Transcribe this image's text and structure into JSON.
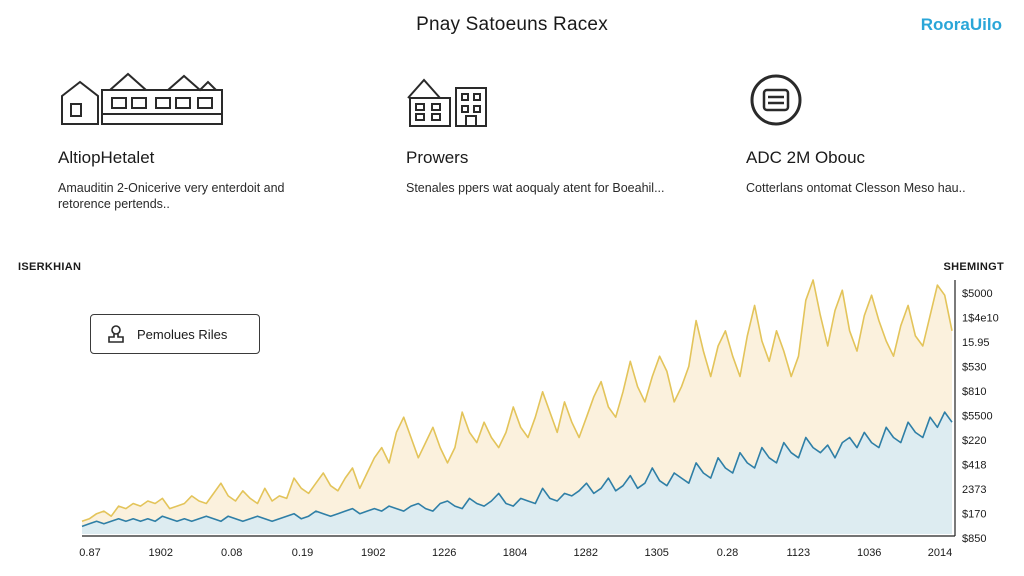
{
  "header": {
    "title": "Pnay Satoeuns Racex",
    "brand": "RooraUilo"
  },
  "features": [
    {
      "title": "AltiopHetalet",
      "text": "Amauditin 2-Onicerive very enterdoit and retorence pertends..",
      "icon": "house-row-icon"
    },
    {
      "title": "Prowers",
      "text": "Stenales ppers wat aoqualy atent for Boeahil...",
      "icon": "buildings-icon"
    },
    {
      "title": "ADC 2M Obouc",
      "text": "Cotterlans ontomat Clesson Meso hau..",
      "icon": "circle-badge-icon"
    }
  ],
  "filter_button": {
    "label": "Pemolues Riles",
    "icon": "stamp-icon"
  },
  "chart_data": {
    "type": "area",
    "xlabel": "ISERKHIAN",
    "ylabel": "SHEMINGT",
    "x_tick_labels": [
      "0.87",
      "1902",
      "0.08",
      "0.19",
      "1902",
      "1226",
      "1804",
      "1282",
      "1305",
      "0.28",
      "1123",
      "1036",
      "2014"
    ],
    "y_tick_labels": [
      "$5000",
      "1$4e10",
      "15.95",
      "$530",
      "$810",
      "$5500",
      "$220",
      "$418",
      "2373",
      "$170",
      "$850"
    ],
    "ylim": [
      0,
      100
    ],
    "grid": false,
    "colors": {
      "series_a_line": "#e3c45a",
      "series_a_fill": "#fbf0d9",
      "series_b_line": "#2f7fa6",
      "series_b_fill": "#d7ebf5"
    },
    "x": [
      0,
      1,
      2,
      3,
      4,
      5,
      6,
      7,
      8,
      9,
      10,
      11,
      12,
      13,
      14,
      15,
      16,
      17,
      18,
      19,
      20,
      21,
      22,
      23,
      24,
      25,
      26,
      27,
      28,
      29,
      30,
      31,
      32,
      33,
      34,
      35,
      36,
      37,
      38,
      39,
      40,
      41,
      42,
      43,
      44,
      45,
      46,
      47,
      48,
      49,
      50,
      51,
      52,
      53,
      54,
      55,
      56,
      57,
      58,
      59,
      60,
      61,
      62,
      63,
      64,
      65,
      66,
      67,
      68,
      69,
      70,
      71,
      72,
      73,
      74,
      75,
      76,
      77,
      78,
      79,
      80,
      81,
      82,
      83,
      84,
      85,
      86,
      87,
      88,
      89,
      90,
      91,
      92,
      93,
      94,
      95,
      96,
      97,
      98,
      99,
      100,
      101,
      102,
      103,
      104,
      105,
      106,
      107,
      108,
      109,
      110,
      111,
      112,
      113,
      114,
      115,
      116,
      117,
      118,
      119
    ],
    "series": [
      {
        "values": [
          5,
          6,
          8,
          9,
          7,
          11,
          10,
          12,
          11,
          13,
          12,
          14,
          10,
          11,
          12,
          15,
          13,
          12,
          16,
          20,
          15,
          13,
          17,
          14,
          12,
          18,
          13,
          15,
          14,
          22,
          18,
          16,
          20,
          24,
          19,
          17,
          22,
          26,
          18,
          24,
          30,
          34,
          28,
          40,
          46,
          38,
          30,
          36,
          42,
          34,
          28,
          34,
          48,
          40,
          36,
          44,
          38,
          34,
          40,
          50,
          42,
          38,
          46,
          56,
          48,
          40,
          52,
          44,
          38,
          46,
          54,
          60,
          50,
          46,
          56,
          68,
          58,
          52,
          62,
          70,
          64,
          52,
          58,
          66,
          84,
          72,
          62,
          74,
          80,
          70,
          62,
          78,
          90,
          76,
          68,
          80,
          72,
          62,
          70,
          92,
          100,
          86,
          74,
          88,
          96,
          80,
          72,
          86,
          94,
          84,
          76,
          70,
          82,
          90,
          78,
          74,
          86,
          98,
          94,
          80
        ]
      },
      {
        "values": [
          3,
          4,
          5,
          4,
          5,
          6,
          5,
          6,
          5,
          6,
          5,
          7,
          6,
          5,
          6,
          5,
          6,
          7,
          6,
          5,
          7,
          6,
          5,
          6,
          7,
          6,
          5,
          6,
          7,
          8,
          6,
          7,
          9,
          8,
          7,
          8,
          9,
          10,
          8,
          9,
          10,
          9,
          11,
          10,
          9,
          11,
          12,
          10,
          9,
          12,
          13,
          11,
          10,
          14,
          12,
          11,
          13,
          16,
          12,
          11,
          14,
          13,
          12,
          18,
          14,
          13,
          16,
          15,
          17,
          20,
          16,
          18,
          22,
          17,
          19,
          23,
          18,
          20,
          26,
          21,
          19,
          24,
          22,
          20,
          28,
          24,
          22,
          30,
          26,
          24,
          32,
          28,
          26,
          34,
          30,
          28,
          36,
          32,
          30,
          38,
          34,
          32,
          35,
          30,
          36,
          38,
          34,
          40,
          36,
          34,
          42,
          38,
          36,
          44,
          40,
          38,
          46,
          42,
          48,
          44
        ]
      }
    ]
  }
}
